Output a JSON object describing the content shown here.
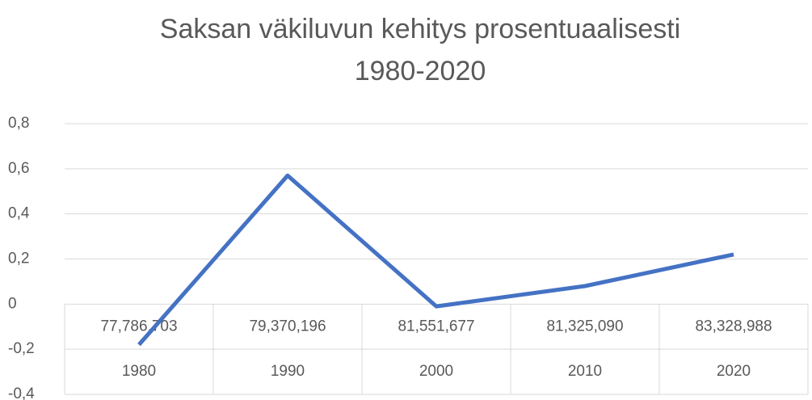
{
  "chart_data": {
    "type": "line",
    "title": [
      "Saksan väkiluvun kehitys prosentuaalisesti",
      "1980-2020"
    ],
    "categories": [
      "1980",
      "1990",
      "2000",
      "2010",
      "2020"
    ],
    "populations": [
      "77,786,703",
      "79,370,196",
      "81,551,677",
      "81,325,090",
      "83,328,988"
    ],
    "series": [
      {
        "color": "#4472c4",
        "values": [
          -0.18,
          0.57,
          -0.01,
          0.08,
          0.22
        ]
      }
    ],
    "ylim": [
      -0.4,
      0.8
    ],
    "yticks": [
      {
        "value": -0.4,
        "label": "-0,4"
      },
      {
        "value": -0.2,
        "label": "-0,2"
      },
      0,
      {
        "value": 0.2,
        "label": "0,2"
      },
      {
        "value": 0.4,
        "label": "0,4"
      },
      {
        "value": 0.6,
        "label": "0,6"
      },
      {
        "value": 0.8,
        "label": "0,8"
      }
    ],
    "grid": true
  }
}
